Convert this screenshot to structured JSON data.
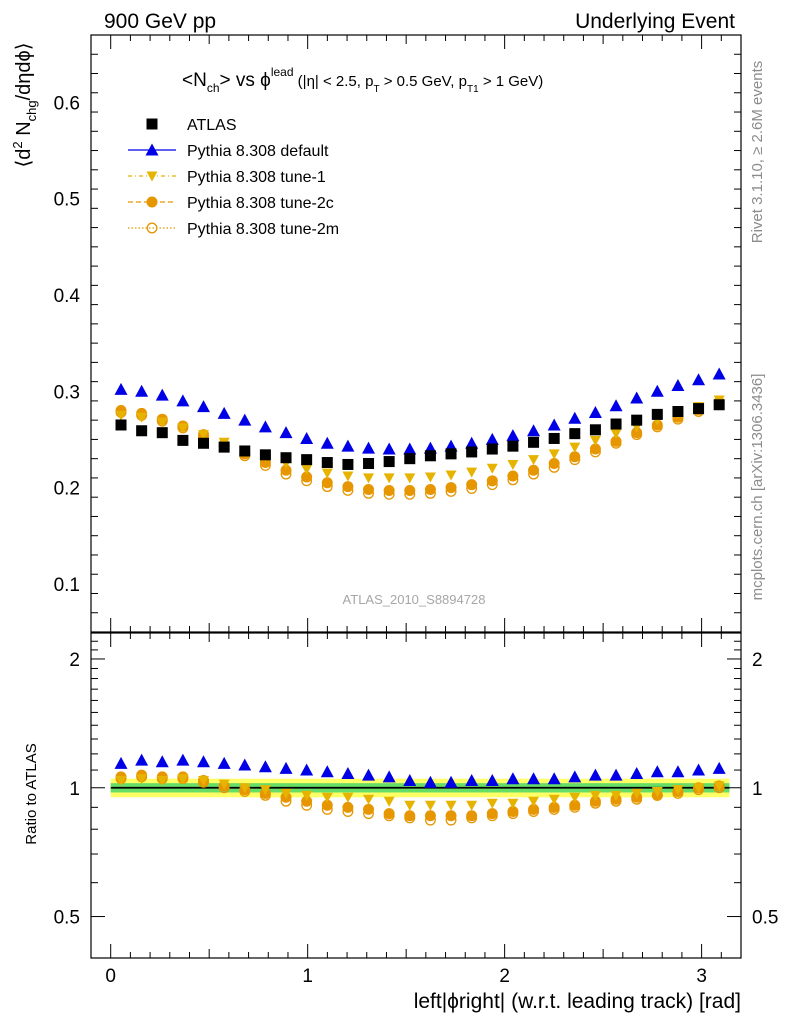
{
  "header": {
    "left": "900 GeV pp",
    "right": "Underlying Event"
  },
  "side_labels": {
    "rivet": "Rivet 3.1.10, ≥ 2.6M events",
    "mcplots": "mcplots.cern.ch [arXiv:1306.3436]"
  },
  "plot_title": {
    "main": "<N",
    "main_sub": "ch",
    "main_vs": "> vs ϕ",
    "main_sup": "lead",
    "cuts": "(|η| < 2.5, p",
    "cuts_sub1": "T",
    "cuts_mid": " > 0.5 GeV, p",
    "cuts_sub2": "T1",
    "cuts_end": " > 1 GeV)"
  },
  "y_axis_title": {
    "pre": "⟨d",
    "sup": "2",
    "mid": " N",
    "sub": "chg",
    "post": "/dηdϕ⟩"
  },
  "ratio_axis_title": "Ratio to ATLAS",
  "x_axis_title": "left|ϕright| (w.r.t. leading track) [rad]",
  "analysis_id": "ATLAS_2010_S8894728",
  "legend": [
    {
      "label": "ATLAS",
      "color": "#000000",
      "marker": "square"
    },
    {
      "label": "Pythia 8.308 default",
      "color": "#0000e6",
      "marker": "triangle-up"
    },
    {
      "label": "Pythia 8.308 tune-1",
      "color": "#e6b400",
      "marker": "triangle-down"
    },
    {
      "label": "Pythia 8.308 tune-2c",
      "color": "#e69600",
      "marker": "circle"
    },
    {
      "label": "Pythia 8.308 tune-2m",
      "color": "#e69600",
      "marker": "open-circle"
    }
  ],
  "chart_data": {
    "type": "scatter",
    "x": [
      0.0524,
      0.1571,
      0.2618,
      0.3665,
      0.4712,
      0.576,
      0.6807,
      0.7854,
      0.8901,
      0.9948,
      1.0996,
      1.2043,
      1.309,
      1.4137,
      1.5184,
      1.6232,
      1.7279,
      1.8326,
      1.9373,
      2.042,
      2.1468,
      2.2515,
      2.3562,
      2.4609,
      2.5656,
      2.6704,
      2.7751,
      2.8798,
      2.9845,
      3.0892
    ],
    "main": {
      "xlim": [
        -0.1,
        3.2
      ],
      "ylim": [
        0.05,
        0.67
      ],
      "yticks": [
        0.1,
        0.2,
        0.3,
        0.4,
        0.5,
        0.6
      ],
      "series": [
        {
          "name": "ATLAS",
          "values": [
            0.265,
            0.259,
            0.257,
            0.249,
            0.246,
            0.242,
            0.238,
            0.234,
            0.231,
            0.229,
            0.226,
            0.224,
            0.225,
            0.227,
            0.23,
            0.233,
            0.235,
            0.237,
            0.24,
            0.243,
            0.247,
            0.251,
            0.256,
            0.26,
            0.266,
            0.27,
            0.276,
            0.279,
            0.282,
            0.286
          ]
        },
        {
          "name": "Pythia 8.308 default",
          "values": [
            0.302,
            0.3,
            0.296,
            0.29,
            0.284,
            0.277,
            0.27,
            0.263,
            0.257,
            0.251,
            0.246,
            0.243,
            0.241,
            0.24,
            0.24,
            0.241,
            0.243,
            0.246,
            0.25,
            0.254,
            0.259,
            0.265,
            0.272,
            0.278,
            0.285,
            0.293,
            0.3,
            0.306,
            0.312,
            0.318
          ]
        },
        {
          "name": "Pythia 8.308 tune-1",
          "values": [
            0.275,
            0.273,
            0.268,
            0.262,
            0.255,
            0.247,
            0.239,
            0.232,
            0.225,
            0.219,
            0.215,
            0.212,
            0.21,
            0.21,
            0.21,
            0.211,
            0.213,
            0.216,
            0.22,
            0.224,
            0.229,
            0.235,
            0.242,
            0.249,
            0.256,
            0.263,
            0.27,
            0.277,
            0.284,
            0.291
          ]
        },
        {
          "name": "Pythia 8.308 tune-2c",
          "values": [
            0.28,
            0.277,
            0.271,
            0.264,
            0.255,
            0.245,
            0.235,
            0.226,
            0.218,
            0.211,
            0.205,
            0.201,
            0.198,
            0.197,
            0.197,
            0.198,
            0.2,
            0.203,
            0.207,
            0.212,
            0.218,
            0.225,
            0.232,
            0.24,
            0.248,
            0.257,
            0.265,
            0.273,
            0.281,
            0.289
          ]
        },
        {
          "name": "Pythia 8.308 tune-2m",
          "values": [
            0.278,
            0.275,
            0.269,
            0.262,
            0.253,
            0.243,
            0.233,
            0.223,
            0.214,
            0.207,
            0.201,
            0.197,
            0.194,
            0.193,
            0.193,
            0.194,
            0.196,
            0.199,
            0.203,
            0.208,
            0.214,
            0.221,
            0.229,
            0.237,
            0.246,
            0.255,
            0.263,
            0.271,
            0.279,
            0.287
          ]
        }
      ]
    },
    "ratio": {
      "ylim": [
        0.4,
        2.3
      ],
      "yticks": [
        0.5,
        1,
        2
      ],
      "band_yellow": [
        0.95,
        1.05
      ],
      "band_green": [
        0.975,
        1.025
      ],
      "series": [
        {
          "name": "Pythia 8.308 default",
          "values": [
            1.14,
            1.16,
            1.15,
            1.16,
            1.15,
            1.14,
            1.13,
            1.12,
            1.11,
            1.1,
            1.09,
            1.08,
            1.07,
            1.06,
            1.04,
            1.03,
            1.03,
            1.04,
            1.04,
            1.05,
            1.05,
            1.05,
            1.06,
            1.07,
            1.07,
            1.08,
            1.09,
            1.09,
            1.1,
            1.11
          ]
        },
        {
          "name": "Pythia 8.308 tune-1",
          "values": [
            1.04,
            1.05,
            1.04,
            1.05,
            1.04,
            1.02,
            1.0,
            0.99,
            0.97,
            0.96,
            0.95,
            0.95,
            0.94,
            0.93,
            0.91,
            0.91,
            0.91,
            0.91,
            0.92,
            0.92,
            0.93,
            0.94,
            0.95,
            0.96,
            0.96,
            0.97,
            0.98,
            0.99,
            1.0,
            1.01
          ]
        },
        {
          "name": "Pythia 8.308 tune-2c",
          "values": [
            1.06,
            1.07,
            1.06,
            1.06,
            1.04,
            1.01,
            0.99,
            0.97,
            0.95,
            0.93,
            0.91,
            0.9,
            0.89,
            0.87,
            0.86,
            0.86,
            0.86,
            0.86,
            0.87,
            0.88,
            0.89,
            0.9,
            0.91,
            0.93,
            0.94,
            0.95,
            0.96,
            0.98,
            1.0,
            1.01
          ]
        },
        {
          "name": "Pythia 8.308 tune-2m",
          "values": [
            1.05,
            1.06,
            1.05,
            1.05,
            1.03,
            1.0,
            0.98,
            0.96,
            0.93,
            0.91,
            0.89,
            0.88,
            0.87,
            0.86,
            0.85,
            0.84,
            0.84,
            0.85,
            0.86,
            0.87,
            0.88,
            0.89,
            0.9,
            0.92,
            0.93,
            0.94,
            0.96,
            0.97,
            0.99,
            1.0
          ]
        }
      ]
    },
    "xticks": [
      0,
      1,
      2,
      3
    ]
  }
}
